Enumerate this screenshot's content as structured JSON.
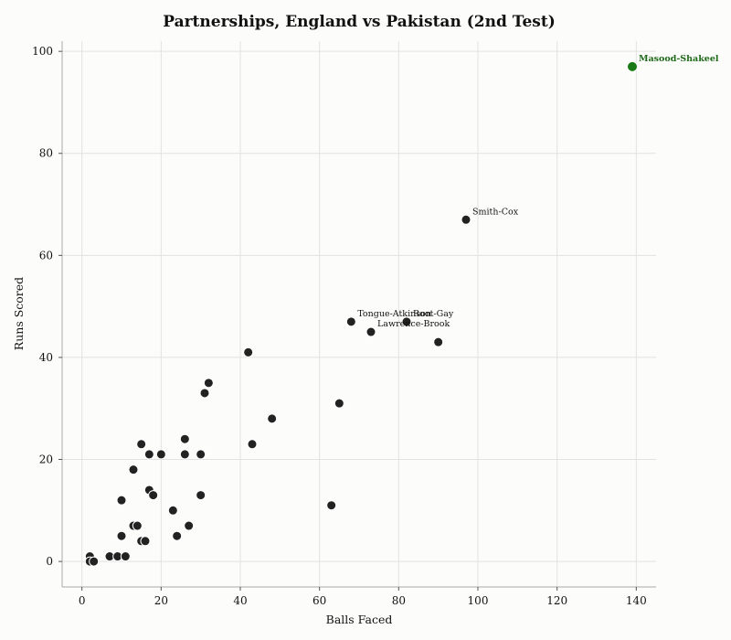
{
  "chart_data": {
    "type": "scatter",
    "title": "Partnerships, England vs Pakistan (2nd Test)",
    "xlabel": "Balls Faced",
    "ylabel": "Runs Scored",
    "xlim": [
      -5,
      145
    ],
    "ylim": [
      -5,
      102
    ],
    "xticks": [
      0,
      20,
      40,
      60,
      80,
      100,
      120,
      140
    ],
    "yticks": [
      0,
      20,
      40,
      60,
      80,
      100
    ],
    "grid": true,
    "colors": {
      "default": "#222222",
      "highlight": "#1a7a17",
      "highlight_label": "#1f6b1a"
    },
    "points": [
      {
        "x": 2,
        "y": 1
      },
      {
        "x": 2,
        "y": 0
      },
      {
        "x": 3,
        "y": 0
      },
      {
        "x": 7,
        "y": 1
      },
      {
        "x": 9,
        "y": 1
      },
      {
        "x": 11,
        "y": 1
      },
      {
        "x": 10,
        "y": 5
      },
      {
        "x": 10,
        "y": 12
      },
      {
        "x": 13,
        "y": 7
      },
      {
        "x": 14,
        "y": 7
      },
      {
        "x": 13,
        "y": 18
      },
      {
        "x": 15,
        "y": 4
      },
      {
        "x": 16,
        "y": 4
      },
      {
        "x": 15,
        "y": 23
      },
      {
        "x": 17,
        "y": 14
      },
      {
        "x": 18,
        "y": 13
      },
      {
        "x": 17,
        "y": 21
      },
      {
        "x": 20,
        "y": 21
      },
      {
        "x": 23,
        "y": 10
      },
      {
        "x": 24,
        "y": 5
      },
      {
        "x": 26,
        "y": 24
      },
      {
        "x": 26,
        "y": 21
      },
      {
        "x": 27,
        "y": 7
      },
      {
        "x": 30,
        "y": 21
      },
      {
        "x": 30,
        "y": 13
      },
      {
        "x": 31,
        "y": 33
      },
      {
        "x": 32,
        "y": 35
      },
      {
        "x": 42,
        "y": 41
      },
      {
        "x": 43,
        "y": 23
      },
      {
        "x": 48,
        "y": 28
      },
      {
        "x": 63,
        "y": 11
      },
      {
        "x": 65,
        "y": 31
      },
      {
        "x": 68,
        "y": 47,
        "label": "Tongue-Atkinson"
      },
      {
        "x": 73,
        "y": 45,
        "label": "Lawrence-Brook"
      },
      {
        "x": 82,
        "y": 47,
        "label": "Root-Gay"
      },
      {
        "x": 90,
        "y": 43
      },
      {
        "x": 97,
        "y": 67,
        "label": "Smith-Cox"
      },
      {
        "x": 139,
        "y": 97,
        "label": "Masood-Shakeel",
        "highlight": true
      }
    ]
  }
}
